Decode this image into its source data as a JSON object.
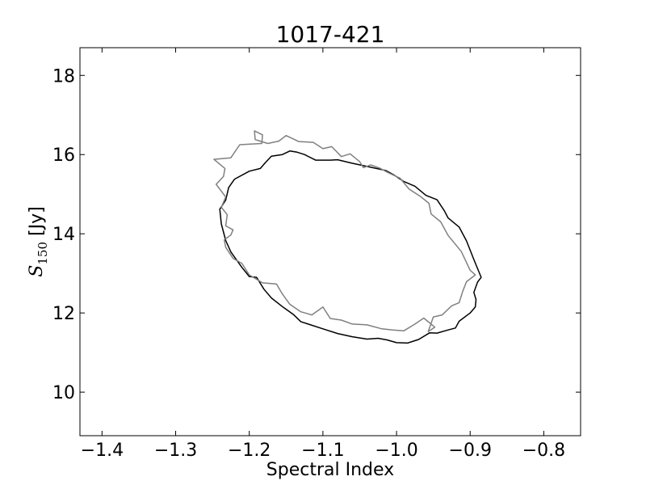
{
  "chart_data": {
    "type": "line",
    "title": "1017-421",
    "xlabel": "Spectral Index",
    "ylabel": {
      "symbol": "S",
      "subscript": "150",
      "unit": " [Jy]"
    },
    "xlim": [
      -1.43,
      -0.75
    ],
    "ylim": [
      8.9,
      18.7
    ],
    "xticks": [
      -1.4,
      -1.3,
      -1.2,
      -1.1,
      -1.0,
      -0.9,
      -0.8
    ],
    "xtick_labels": [
      "−1.4",
      "−1.3",
      "−1.2",
      "−1.1",
      "−1.0",
      "−0.9",
      "−0.8"
    ],
    "yticks": [
      10,
      12,
      14,
      16,
      18
    ],
    "ytick_labels": [
      "10",
      "12",
      "14",
      "16",
      "18"
    ],
    "grid": false,
    "series": [
      {
        "color": "#000000",
        "closed": true,
        "points": [
          [
            -1.145,
            16.09
          ],
          [
            -1.135,
            16.06
          ],
          [
            -1.125,
            16.0
          ],
          [
            -1.11,
            15.86
          ],
          [
            -1.09,
            15.86
          ],
          [
            -1.08,
            15.87
          ],
          [
            -1.06,
            15.78
          ],
          [
            -1.04,
            15.7
          ],
          [
            -1.03,
            15.66
          ],
          [
            -1.015,
            15.6
          ],
          [
            -1.003,
            15.48
          ],
          [
            -0.99,
            15.32
          ],
          [
            -0.975,
            15.2
          ],
          [
            -0.96,
            14.97
          ],
          [
            -0.945,
            14.86
          ],
          [
            -0.935,
            14.58
          ],
          [
            -0.93,
            14.4
          ],
          [
            -0.915,
            14.17
          ],
          [
            -0.905,
            13.82
          ],
          [
            -0.895,
            13.35
          ],
          [
            -0.885,
            12.9
          ],
          [
            -0.89,
            12.78
          ],
          [
            -0.895,
            12.52
          ],
          [
            -0.892,
            12.34
          ],
          [
            -0.893,
            12.15
          ],
          [
            -0.9,
            12.0
          ],
          [
            -0.915,
            11.79
          ],
          [
            -0.92,
            11.62
          ],
          [
            -0.93,
            11.57
          ],
          [
            -0.945,
            11.49
          ],
          [
            -0.955,
            11.5
          ],
          [
            -0.97,
            11.33
          ],
          [
            -0.985,
            11.24
          ],
          [
            -1.0,
            11.25
          ],
          [
            -1.013,
            11.32
          ],
          [
            -1.025,
            11.36
          ],
          [
            -1.04,
            11.34
          ],
          [
            -1.06,
            11.4
          ],
          [
            -1.08,
            11.48
          ],
          [
            -1.1,
            11.6
          ],
          [
            -1.12,
            11.72
          ],
          [
            -1.13,
            11.78
          ],
          [
            -1.14,
            11.96
          ],
          [
            -1.155,
            12.16
          ],
          [
            -1.17,
            12.38
          ],
          [
            -1.18,
            12.6
          ],
          [
            -1.19,
            12.9
          ],
          [
            -1.2,
            12.92
          ],
          [
            -1.21,
            13.15
          ],
          [
            -1.225,
            13.54
          ],
          [
            -1.232,
            13.83
          ],
          [
            -1.238,
            14.25
          ],
          [
            -1.24,
            14.62
          ],
          [
            -1.232,
            14.85
          ],
          [
            -1.228,
            15.17
          ],
          [
            -1.22,
            15.38
          ],
          [
            -1.2,
            15.58
          ],
          [
            -1.185,
            15.65
          ],
          [
            -1.178,
            15.8
          ],
          [
            -1.17,
            15.96
          ],
          [
            -1.155,
            16.0
          ],
          [
            -1.145,
            16.09
          ]
        ]
      },
      {
        "color": "#808080",
        "closed": true,
        "points": [
          [
            -1.193,
            16.6
          ],
          [
            -1.192,
            16.38
          ],
          [
            -1.175,
            16.28
          ],
          [
            -1.16,
            16.34
          ],
          [
            -1.15,
            16.48
          ],
          [
            -1.133,
            16.33
          ],
          [
            -1.113,
            16.31
          ],
          [
            -1.1,
            16.15
          ],
          [
            -1.088,
            16.2
          ],
          [
            -1.075,
            15.95
          ],
          [
            -1.063,
            16.02
          ],
          [
            -1.05,
            15.82
          ],
          [
            -1.045,
            15.67
          ],
          [
            -1.035,
            15.74
          ],
          [
            -1.023,
            15.66
          ],
          [
            -1.012,
            15.55
          ],
          [
            -0.995,
            15.4
          ],
          [
            -0.983,
            15.13
          ],
          [
            -0.968,
            14.95
          ],
          [
            -0.956,
            14.77
          ],
          [
            -0.953,
            14.5
          ],
          [
            -0.94,
            14.3
          ],
          [
            -0.93,
            13.96
          ],
          [
            -0.912,
            13.55
          ],
          [
            -0.9,
            13.08
          ],
          [
            -0.893,
            12.96
          ],
          [
            -0.905,
            12.79
          ],
          [
            -0.91,
            12.55
          ],
          [
            -0.915,
            12.26
          ],
          [
            -0.925,
            12.18
          ],
          [
            -0.938,
            11.95
          ],
          [
            -0.95,
            11.9
          ],
          [
            -0.957,
            11.53
          ],
          [
            -0.948,
            11.64
          ],
          [
            -0.963,
            11.87
          ],
          [
            -0.975,
            11.72
          ],
          [
            -0.99,
            11.55
          ],
          [
            -1.005,
            11.57
          ],
          [
            -1.02,
            11.6
          ],
          [
            -1.04,
            11.7
          ],
          [
            -1.06,
            11.72
          ],
          [
            -1.075,
            11.82
          ],
          [
            -1.09,
            11.86
          ],
          [
            -1.1,
            12.15
          ],
          [
            -1.115,
            11.95
          ],
          [
            -1.13,
            12.03
          ],
          [
            -1.145,
            12.22
          ],
          [
            -1.155,
            12.48
          ],
          [
            -1.163,
            12.73
          ],
          [
            -1.182,
            12.76
          ],
          [
            -1.2,
            12.96
          ],
          [
            -1.21,
            13.25
          ],
          [
            -1.222,
            13.38
          ],
          [
            -1.232,
            13.66
          ],
          [
            -1.234,
            13.85
          ],
          [
            -1.225,
            13.97
          ],
          [
            -1.222,
            14.1
          ],
          [
            -1.232,
            14.2
          ],
          [
            -1.23,
            14.48
          ],
          [
            -1.238,
            14.67
          ],
          [
            -1.232,
            14.93
          ],
          [
            -1.245,
            15.25
          ],
          [
            -1.235,
            15.45
          ],
          [
            -1.233,
            15.65
          ],
          [
            -1.248,
            15.88
          ],
          [
            -1.225,
            15.92
          ],
          [
            -1.213,
            16.25
          ],
          [
            -1.183,
            16.28
          ],
          [
            -1.182,
            16.5
          ],
          [
            -1.193,
            16.6
          ]
        ]
      }
    ]
  }
}
